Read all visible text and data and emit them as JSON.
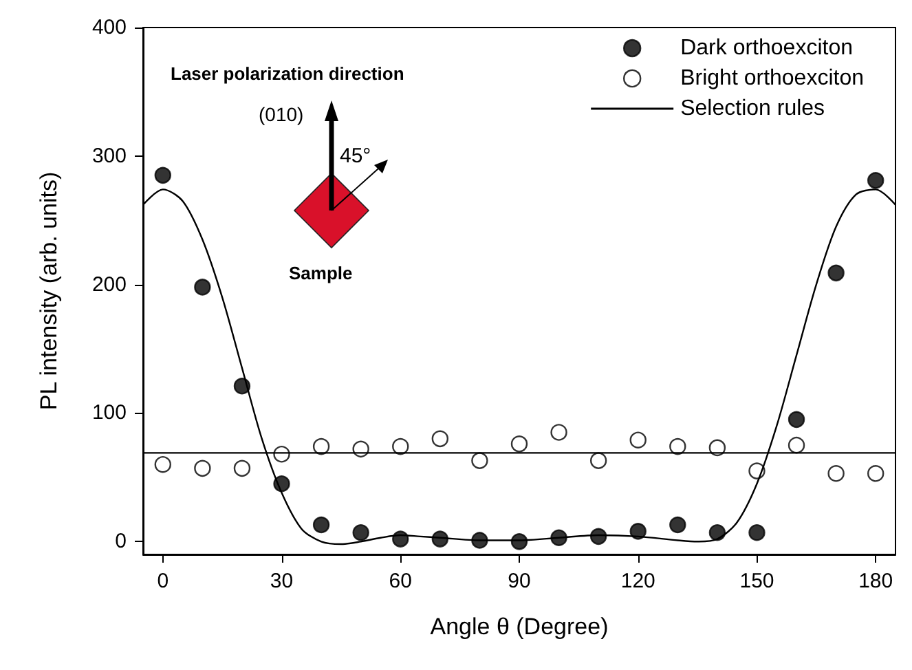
{
  "chart_data": {
    "type": "scatter",
    "xlabel": "Angle θ (Degree)",
    "ylabel": "PL intensity (arb. units)",
    "x": [
      0,
      10,
      20,
      30,
      40,
      50,
      60,
      70,
      80,
      90,
      100,
      110,
      120,
      130,
      140,
      150,
      160,
      170,
      180
    ],
    "xlim": [
      -5,
      185
    ],
    "ylim": [
      -10,
      400
    ],
    "xticks": [
      0,
      30,
      60,
      90,
      120,
      150,
      180
    ],
    "yticks": [
      0,
      100,
      200,
      300,
      400
    ],
    "series": [
      {
        "name": "Dark orthoexciton",
        "color": "#000000",
        "marker": "circle",
        "values": [
          285,
          198,
          121,
          45,
          13,
          7,
          2,
          2,
          1,
          0,
          3,
          4,
          8,
          13,
          7,
          7,
          95,
          209,
          281
        ]
      },
      {
        "name": "Bright orthoexciton",
        "color": "#ffffff",
        "marker": "circle",
        "values": [
          60,
          57,
          57,
          68,
          74,
          72,
          74,
          80,
          63,
          76,
          85,
          63,
          79,
          74,
          73,
          55,
          75,
          53,
          53
        ]
      },
      {
        "name": "Selection rules",
        "type": "line",
        "color": "#000000",
        "marker": "none",
        "line_style": "solid",
        "x": [
          -5,
          0,
          5,
          10,
          15,
          20,
          25,
          30,
          35,
          40,
          45,
          50,
          55,
          60,
          65,
          70,
          80,
          90,
          100,
          110,
          120,
          130,
          135,
          140,
          145,
          150,
          155,
          160,
          165,
          170,
          175,
          180,
          185
        ],
        "values": [
          262,
          274,
          265,
          235,
          190,
          135,
          80,
          38,
          10,
          0,
          -2,
          0,
          3,
          5,
          4,
          3,
          1,
          1,
          3,
          5,
          4,
          1,
          0,
          2,
          15,
          45,
          90,
          145,
          200,
          245,
          270,
          274,
          262
        ]
      },
      {
        "type": "line",
        "color": "#000000",
        "marker": "none",
        "line_style": "solid",
        "x": [
          -5,
          185
        ],
        "values": [
          69,
          69
        ]
      }
    ],
    "legend": "top right",
    "grid": false,
    "annotations": [
      "Laser polarization direction",
      "(010)",
      "45°",
      "Sample"
    ]
  }
}
